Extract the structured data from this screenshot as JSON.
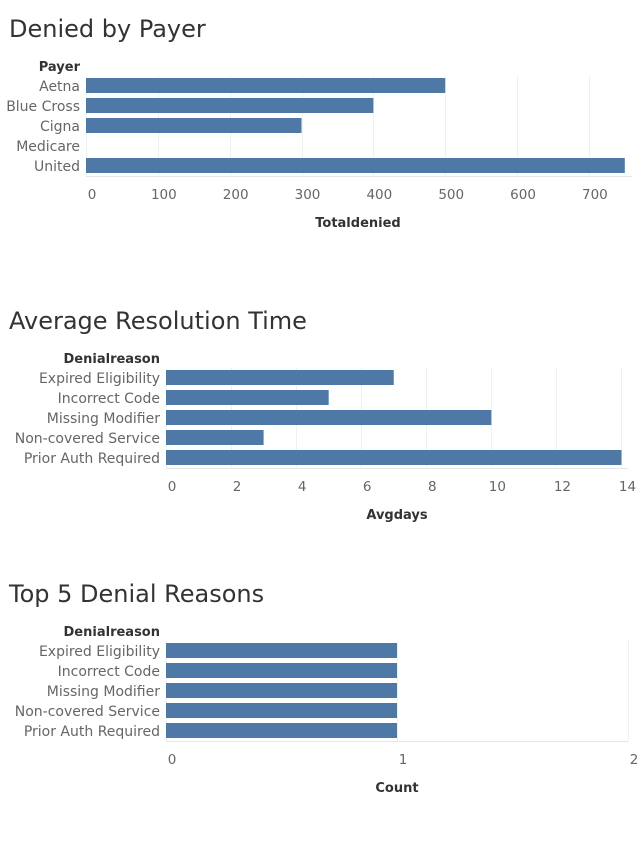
{
  "colors": {
    "bar": "#4e79a7",
    "title": "#333333",
    "label": "#666666"
  },
  "chart_data": [
    {
      "type": "bar",
      "orientation": "horizontal",
      "title": "Denied by Payer",
      "row_header": "Payer",
      "xlabel": "Totaldenied",
      "categories": [
        "Aetna",
        "Blue Cross",
        "Cigna",
        "Medicare",
        "United"
      ],
      "values": [
        500,
        400,
        300,
        0,
        750
      ],
      "xlim": [
        0,
        760
      ],
      "ticks": [
        0,
        100,
        200,
        300,
        400,
        500,
        600,
        700
      ],
      "grid": true
    },
    {
      "type": "bar",
      "orientation": "horizontal",
      "title": "Average Resolution Time",
      "row_header": "Denialreason",
      "xlabel": "Avgdays",
      "categories": [
        "Expired Eligibility",
        "Incorrect Code",
        "Missing Modifier",
        "Non-covered Service",
        "Prior Auth Required"
      ],
      "values": [
        7,
        5,
        10,
        3,
        14
      ],
      "xlim": [
        0,
        14.2
      ],
      "ticks": [
        0,
        2,
        4,
        6,
        8,
        10,
        12,
        14
      ],
      "grid": true
    },
    {
      "type": "bar",
      "orientation": "horizontal",
      "title": "Top 5 Denial Reasons",
      "row_header": "Denialreason",
      "xlabel": "Count",
      "categories": [
        "Expired Eligibility",
        "Incorrect Code",
        "Missing Modifier",
        "Non-covered Service",
        "Prior Auth Required"
      ],
      "values": [
        1,
        1,
        1,
        1,
        1
      ],
      "xlim": [
        0,
        2
      ],
      "ticks": [
        0,
        1,
        2
      ],
      "grid": true
    }
  ]
}
